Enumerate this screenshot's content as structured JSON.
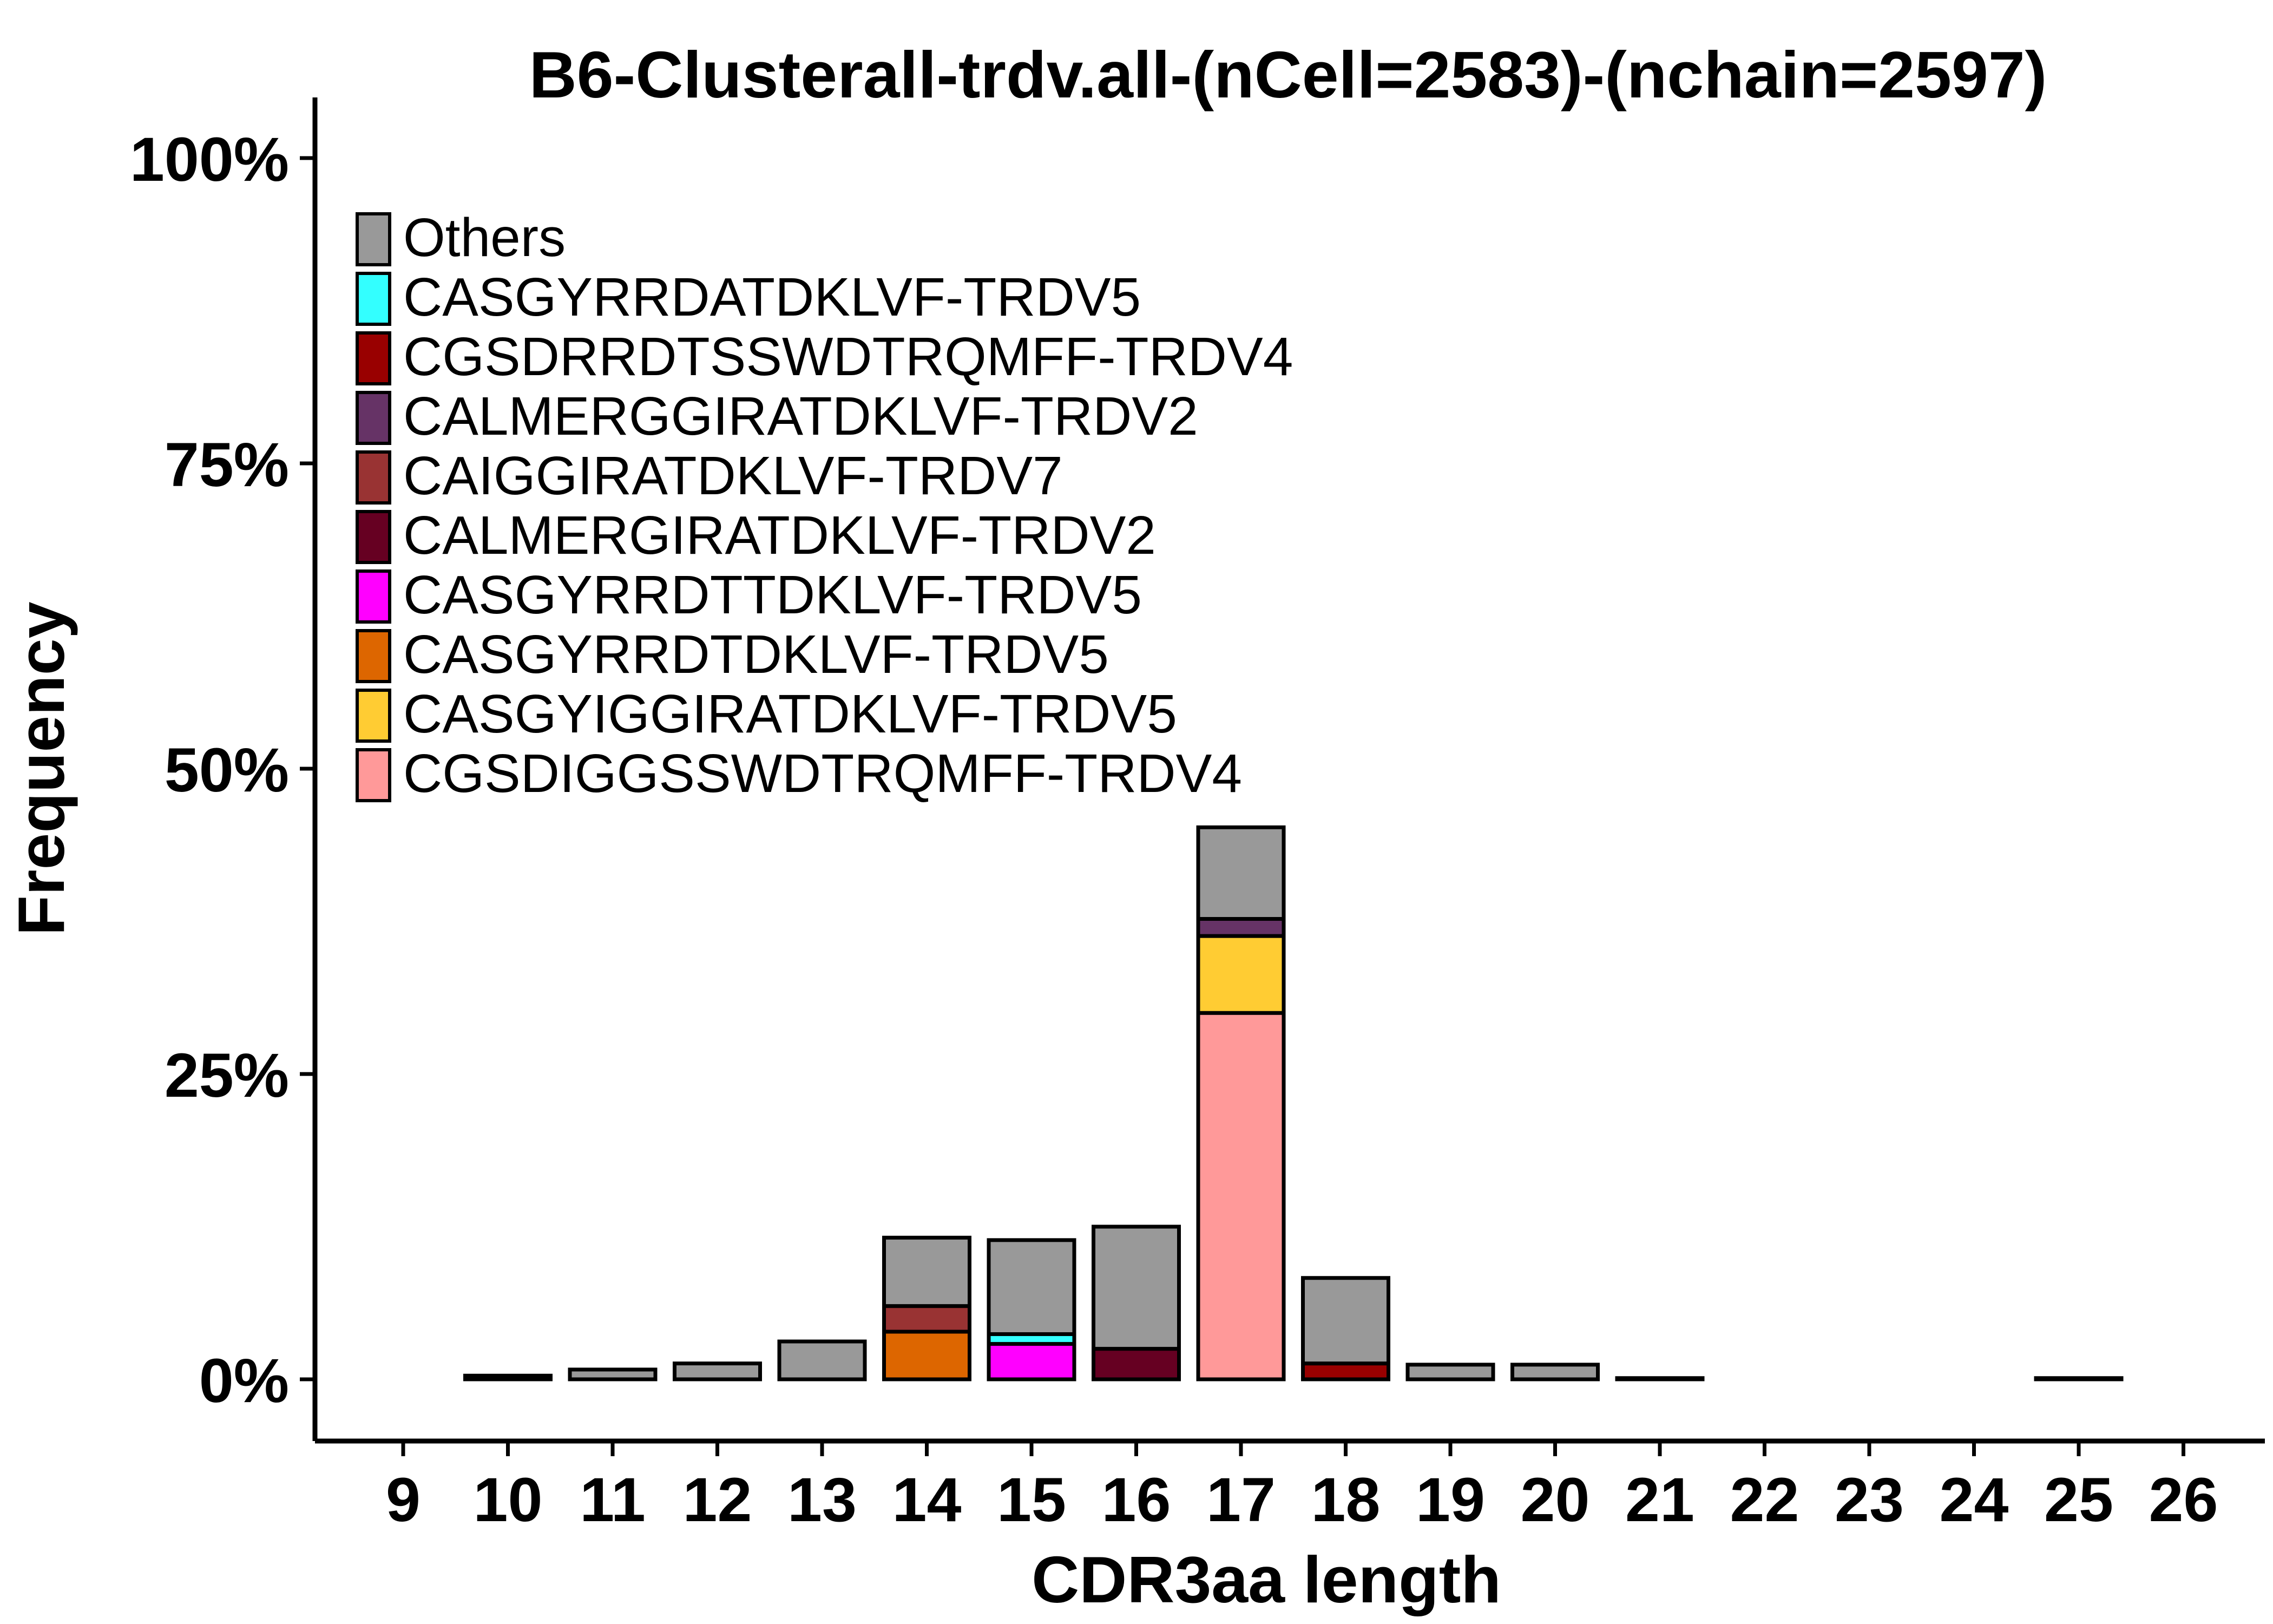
{
  "chart_data": {
    "type": "bar",
    "stacked": true,
    "title": "B6-Clusterall-trdv.all-(nCell=2583)-(nchain=2597)",
    "xlabel": "CDR3aa length",
    "ylabel": "Frequency",
    "ylim": [
      0,
      1.0
    ],
    "xlim": [
      9,
      26
    ],
    "y_ticks": [
      0,
      0.25,
      0.5,
      0.75,
      1.0
    ],
    "y_tick_labels": [
      "0%",
      "25%",
      "50%",
      "75%",
      "100%"
    ],
    "x_ticks": [
      9,
      10,
      11,
      12,
      13,
      14,
      15,
      16,
      17,
      18,
      19,
      20,
      21,
      22,
      23,
      24,
      25,
      26
    ],
    "x_tick_labels": [
      "9",
      "10",
      "11",
      "12",
      "13",
      "14",
      "15",
      "16",
      "17",
      "18",
      "19",
      "20",
      "21",
      "22",
      "23",
      "24",
      "25",
      "26"
    ],
    "grid": false,
    "legend_position": "top-left",
    "legend": [
      {
        "label": "Others",
        "color": "#999999"
      },
      {
        "label": "CASGYRRDATDKLVF-TRDV5",
        "color": "#33FFFF"
      },
      {
        "label": "CGSDRRDTSSWDTRQMFF-TRDV4",
        "color": "#990000"
      },
      {
        "label": "CALMERGGIRATDKLVF-TRDV2",
        "color": "#663366"
      },
      {
        "label": "CAIGGIRATDKLVF-TRDV7",
        "color": "#993333"
      },
      {
        "label": "CALMERGIRATDKLVF-TRDV2",
        "color": "#660022"
      },
      {
        "label": "CASGYRRDTTDKLVF-TRDV5",
        "color": "#FF00FF"
      },
      {
        "label": "CASGYRRDTDKLVF-TRDV5",
        "color": "#DD6600"
      },
      {
        "label": "CASGYIGGIRATDKLVF-TRDV5",
        "color": "#FFCC33"
      },
      {
        "label": "CGSDIGGSSWDTRQMFF-TRDV4",
        "color": "#FF9999"
      }
    ],
    "bars": [
      {
        "x": 10,
        "segments": [
          {
            "series": "Others",
            "value": 0.003
          }
        ]
      },
      {
        "x": 11,
        "segments": [
          {
            "series": "Others",
            "value": 0.008
          }
        ]
      },
      {
        "x": 12,
        "segments": [
          {
            "series": "Others",
            "value": 0.013
          }
        ]
      },
      {
        "x": 13,
        "segments": [
          {
            "series": "Others",
            "value": 0.031
          }
        ]
      },
      {
        "x": 14,
        "segments": [
          {
            "series": "CASGYRRDTDKLVF-TRDV5",
            "value": 0.039
          },
          {
            "series": "CAIGGIRATDKLVF-TRDV7",
            "value": 0.021
          },
          {
            "series": "Others",
            "value": 0.056
          }
        ]
      },
      {
        "x": 15,
        "segments": [
          {
            "series": "CASGYRRDTTDKLVF-TRDV5",
            "value": 0.029
          },
          {
            "series": "CASGYRRDATDKLVF-TRDV5",
            "value": 0.008
          },
          {
            "series": "Others",
            "value": 0.077
          }
        ]
      },
      {
        "x": 16,
        "segments": [
          {
            "series": "CALMERGIRATDKLVF-TRDV2",
            "value": 0.025
          },
          {
            "series": "Others",
            "value": 0.1
          }
        ]
      },
      {
        "x": 17,
        "segments": [
          {
            "series": "CGSDIGGSSWDTRQMFF-TRDV4",
            "value": 0.3
          },
          {
            "series": "CASGYIGGIRATDKLVF-TRDV5",
            "value": 0.063
          },
          {
            "series": "CALMERGGIRATDKLVF-TRDV2",
            "value": 0.014
          },
          {
            "series": "Others",
            "value": 0.075
          }
        ]
      },
      {
        "x": 18,
        "segments": [
          {
            "series": "CGSDRRDTSSWDTRQMFF-TRDV4",
            "value": 0.013
          },
          {
            "series": "Others",
            "value": 0.07
          }
        ]
      },
      {
        "x": 19,
        "segments": [
          {
            "series": "Others",
            "value": 0.012
          }
        ]
      },
      {
        "x": 20,
        "segments": [
          {
            "series": "Others",
            "value": 0.012
          }
        ]
      },
      {
        "x": 21,
        "segments": [
          {
            "series": "Others",
            "value": 0.001
          }
        ]
      },
      {
        "x": 25,
        "segments": [
          {
            "series": "Others",
            "value": 0.001
          }
        ]
      }
    ]
  }
}
